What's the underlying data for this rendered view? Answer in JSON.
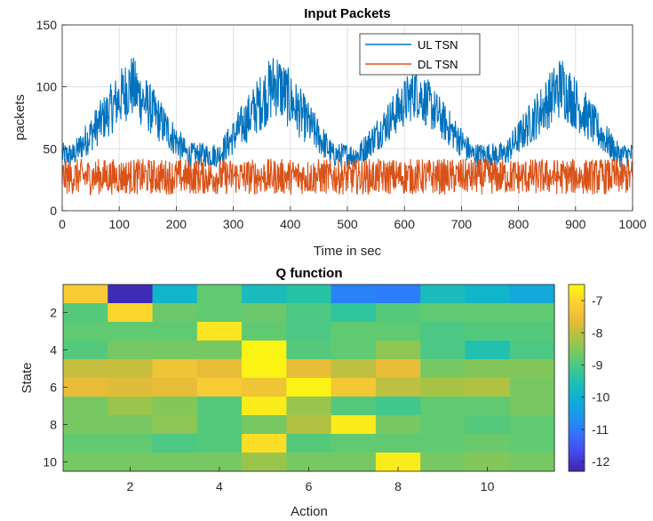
{
  "chart_data": [
    {
      "type": "line",
      "title": "Input Packets",
      "xlabel": "Time in sec",
      "ylabel": "packets",
      "xlim": [
        0,
        1000
      ],
      "ylim": [
        0,
        150
      ],
      "xticks": [
        0,
        100,
        200,
        300,
        400,
        500,
        600,
        700,
        800,
        900,
        1000
      ],
      "yticks": [
        0,
        50,
        100,
        150
      ],
      "grid": true,
      "legend_position": "top-right",
      "series": [
        {
          "name": "UL TSN",
          "color": "#0072BD",
          "description_values": {
            "baseline_low": 35,
            "baseline_high": 55,
            "peak_low": 75,
            "peak_high": 130
          },
          "peaks_x": [
            120,
            375,
            620,
            875
          ],
          "peak_values": [
            128,
            132,
            120,
            127
          ]
        },
        {
          "name": "DL TSN",
          "color": "#D95319",
          "description_values": {
            "low": 13,
            "high": 42,
            "mean": 26
          }
        }
      ]
    },
    {
      "type": "heatmap",
      "title": "Q function",
      "xlabel": "Action",
      "ylabel": "State",
      "xticks": [
        2,
        4,
        6,
        8,
        10
      ],
      "yticks": [
        2,
        4,
        6,
        8,
        10
      ],
      "colormap": "parula",
      "clim": [
        -12.3,
        -6.5
      ],
      "colorbar_ticks": [
        -7,
        -8,
        -9,
        -10,
        -11,
        -12
      ],
      "rows": 10,
      "cols": 11,
      "values": [
        [
          -7.2,
          -12.2,
          -9.9,
          -8.8,
          -9.7,
          -9.4,
          -10.9,
          -11.0,
          -9.7,
          -9.9,
          -10.2
        ],
        [
          -8.9,
          -7.0,
          -8.7,
          -8.8,
          -8.7,
          -9.0,
          -9.3,
          -8.9,
          -8.8,
          -8.8,
          -8.8
        ],
        [
          -8.8,
          -8.8,
          -8.8,
          -6.8,
          -8.8,
          -9.0,
          -8.8,
          -8.8,
          -9.0,
          -8.9,
          -8.9
        ],
        [
          -8.9,
          -8.6,
          -8.6,
          -8.6,
          -6.6,
          -8.9,
          -8.8,
          -8.4,
          -9.0,
          -9.5,
          -9.0
        ],
        [
          -7.9,
          -7.9,
          -7.4,
          -7.6,
          -6.6,
          -7.6,
          -8.0,
          -7.6,
          -8.6,
          -8.5,
          -8.5
        ],
        [
          -7.6,
          -7.7,
          -7.6,
          -7.2,
          -7.4,
          -6.6,
          -7.3,
          -8.0,
          -8.2,
          -8.1,
          -8.6
        ],
        [
          -8.6,
          -8.3,
          -8.5,
          -8.9,
          -6.7,
          -8.3,
          -8.9,
          -9.1,
          -8.8,
          -8.8,
          -8.6
        ],
        [
          -8.6,
          -8.6,
          -8.4,
          -8.9,
          -8.6,
          -8.1,
          -6.7,
          -8.6,
          -8.8,
          -8.9,
          -8.8
        ],
        [
          -8.8,
          -8.8,
          -9.0,
          -8.9,
          -6.9,
          -8.9,
          -8.8,
          -8.8,
          -8.8,
          -8.7,
          -8.8
        ],
        [
          -8.6,
          -8.6,
          -8.6,
          -8.6,
          -8.3,
          -8.6,
          -8.6,
          -6.7,
          -8.6,
          -8.5,
          -8.6
        ]
      ]
    }
  ]
}
